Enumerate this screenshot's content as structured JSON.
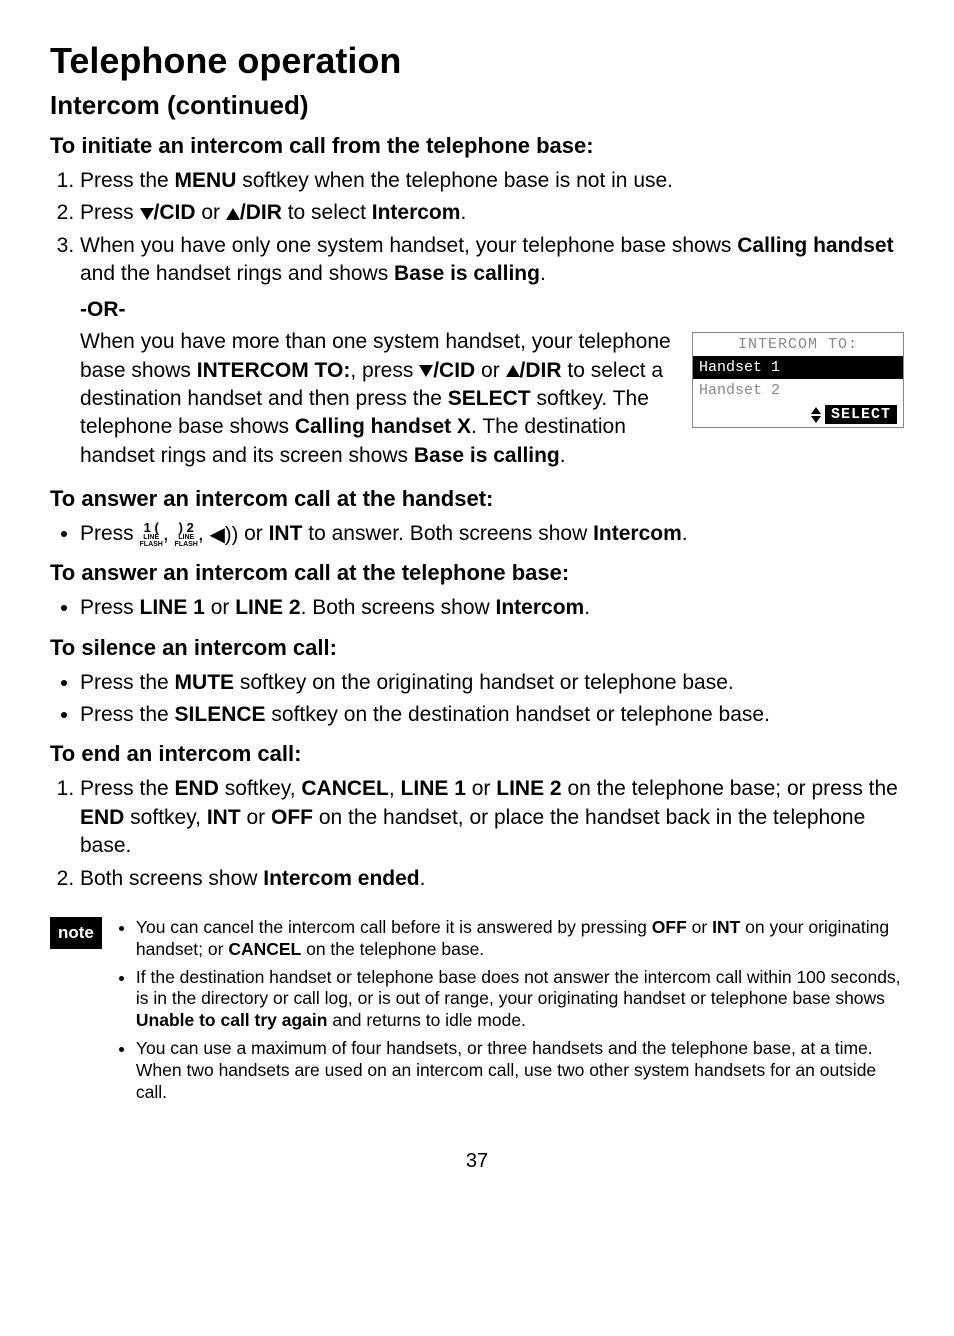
{
  "title": "Telephone operation",
  "subtitle": "Intercom (continued)",
  "sec1": {
    "heading": "To initiate an intercom call from the telephone base:",
    "items": [
      {
        "prefix": "Press the ",
        "b1": "MENU",
        "suffix": " softkey when the telephone base is not in use."
      },
      {
        "prefix": "Press ",
        "cid": "/CID",
        "mid": " or ",
        "dir": "/DIR",
        "mid2": " to select ",
        "b1": "Intercom",
        "suffix": "."
      },
      {
        "prefix": "When you have only one system handset, your telephone base shows ",
        "b1": "Calling handset",
        "mid": " and the handset rings and shows ",
        "b2": "Base is calling",
        "suffix": "."
      }
    ],
    "or": "-OR-",
    "para_a": "When you have more than one system handset, your telephone base shows ",
    "para_b1": "INTERCOM TO:",
    "para_b": ", press ",
    "para_cid": "/CID",
    "para_c": " or ",
    "para_dir": "/DIR",
    "para_d": " to select a destination handset and then press the ",
    "para_b2": "SELECT",
    "para_e": " softkey. The telephone base shows ",
    "para_b3": "Calling handset X",
    "para_f": ". The destination handset rings and its screen shows ",
    "para_b4": "Base is calling",
    "para_g": "."
  },
  "lcd": {
    "title": "INTERCOM TO:",
    "row1": "Handset 1",
    "row2": "Handset 2",
    "select": "SELECT"
  },
  "sec2": {
    "heading": "To answer an intercom call at the handset:",
    "item": {
      "prefix": "Press ",
      "l1t": "1",
      "l2t": "2",
      "mid1": ", ",
      "mid2": ", ",
      "mid3": " or ",
      "b1": "INT",
      "mid4": " to answer. Both screens show ",
      "b2": "Intercom",
      "suffix": "."
    }
  },
  "sec3": {
    "heading": "To answer an intercom call at the telephone base:",
    "item": {
      "prefix": "Press ",
      "b1": "LINE 1",
      "mid": " or ",
      "b2": "LINE 2",
      "mid2": ". Both screens show ",
      "b3": "Intercom",
      "suffix": "."
    }
  },
  "sec4": {
    "heading": "To silence an intercom call:",
    "items": [
      {
        "prefix": "Press the ",
        "b1": "MUTE",
        "suffix": " softkey on the originating handset or telephone base."
      },
      {
        "prefix": "Press the ",
        "b1": "SILENCE",
        "suffix": " softkey on the destination handset or telephone base."
      }
    ]
  },
  "sec5": {
    "heading": "To end an intercom call:",
    "items": [
      {
        "prefix": "Press the ",
        "b1": "END",
        "mid1": " softkey, ",
        "b2": "CANCEL",
        "mid2": ", ",
        "b3": "LINE 1",
        "mid3": " or ",
        "b4": "LINE 2",
        "mid4": " on the telephone base; or press the ",
        "b5": "END",
        "mid5": " softkey, ",
        "b6": "INT",
        "mid6": " or ",
        "b7": "OFF",
        "suffix": " on the handset, or place the handset back in the telephone base."
      },
      {
        "prefix": "Both screens show ",
        "b1": "Intercom ended",
        "suffix": "."
      }
    ]
  },
  "note": {
    "label": "note",
    "items": [
      {
        "a": "You can cancel the intercom call before it is answered by pressing ",
        "b1": "OFF",
        "b": " or ",
        "b2": "INT",
        "c": " on your originating handset; or ",
        "b3": "CANCEL",
        "d": " on the telephone base."
      },
      {
        "a": "If the destination handset or telephone base does not answer the intercom call within 100 seconds, is in the directory or call log, or is out of range, your originating handset or telephone base shows ",
        "b1": "Unable to call try again",
        "b": " and returns to idle mode."
      },
      {
        "a": "You can use a maximum of four handsets, or three handsets and the telephone base, at a time. When two handsets are used on an intercom call, use two other system handsets for an outside call."
      }
    ]
  },
  "page": "37"
}
